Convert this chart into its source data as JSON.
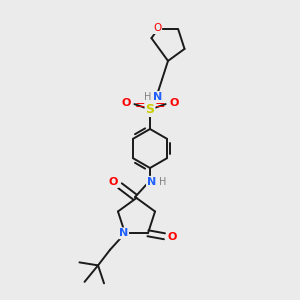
{
  "background_color": "#ebebeb",
  "bond_color": "#1a1a1a",
  "colors": {
    "N": "#2060ff",
    "O": "#ff0000",
    "S": "#cccc00",
    "H": "#808080",
    "C": "#1a1a1a"
  },
  "figsize": [
    3.0,
    3.0
  ],
  "dpi": 100,
  "lw": 1.4
}
